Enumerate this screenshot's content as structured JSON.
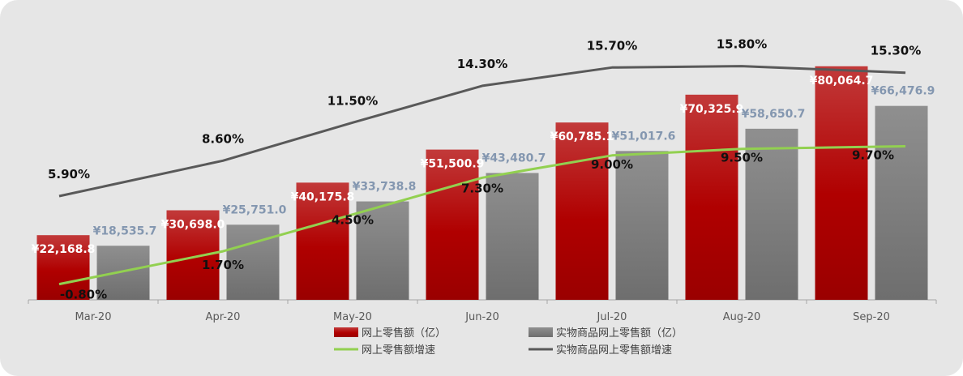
{
  "chart_data": {
    "type": "bar",
    "categories": [
      "Mar-20",
      "Apr-20",
      "May-20",
      "Jun-20",
      "Jul-20",
      "Aug-20",
      "Sep-20"
    ],
    "series": [
      {
        "name": "网上零售额（亿）",
        "type": "bar",
        "color": "#c00000",
        "values": [
          22168.8,
          30698.0,
          40175.8,
          51500.9,
          60785.1,
          70325.9,
          80064.7
        ],
        "labels": [
          "¥22,168.8",
          "¥30,698.0",
          "¥40,175.8",
          "¥51,500.9",
          "¥60,785.1",
          "¥70,325.9",
          "¥80,064.7"
        ]
      },
      {
        "name": "实物商品网上零售额（亿）",
        "type": "bar",
        "color": "#7f7f7f",
        "values": [
          18535.7,
          25751.0,
          33738.8,
          43480.7,
          51017.6,
          58650.7,
          66476.9
        ],
        "labels": [
          "¥18,535.7",
          "¥25,751.0",
          "¥33,738.8",
          "¥43,480.7",
          "¥51,017.6",
          "¥58,650.7",
          "¥66,476.9"
        ]
      },
      {
        "name": "网上零售额增速",
        "type": "line",
        "color": "#92d050",
        "values": [
          -0.8,
          1.7,
          4.5,
          7.3,
          9.0,
          9.5,
          9.7
        ],
        "labels": [
          "-0.80%",
          "1.70%",
          "4.50%",
          "7.30%",
          "9.00%",
          "9.50%",
          "9.70%"
        ]
      },
      {
        "name": "实物商品网上零售额增速",
        "type": "line",
        "color": "#595959",
        "values": [
          5.9,
          8.6,
          11.5,
          14.3,
          15.7,
          15.8,
          15.3
        ],
        "labels": [
          "5.90%",
          "8.60%",
          "11.50%",
          "14.30%",
          "15.70%",
          "15.80%",
          "15.30%"
        ]
      }
    ],
    "ylim": [
      0,
      90000
    ],
    "ylim_right": [
      -2,
      18
    ],
    "grid": false,
    "legend_position": "bottom"
  }
}
